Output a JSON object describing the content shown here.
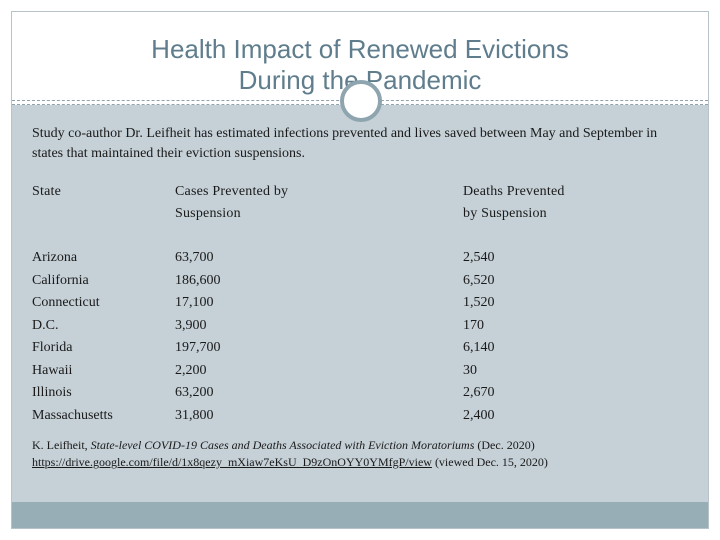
{
  "slide": {
    "title_line1": "Health Impact of Renewed Evictions",
    "title_line2": "During the Pandemic",
    "intro": "Study co-author Dr. Leifheit has estimated infections prevented and lives saved between May and September in states that maintained their eviction suspensions.",
    "table": {
      "headers": {
        "state": "State",
        "cases_line1": "Cases Prevented by",
        "cases_line2": "Suspension",
        "deaths_line1": "Deaths Prevented",
        "deaths_line2": "by Suspension"
      },
      "rows": [
        {
          "state": "Arizona",
          "cases": "63,700",
          "deaths": "2,540"
        },
        {
          "state": "California",
          "cases": "186,600",
          "deaths": "6,520"
        },
        {
          "state": "Connecticut",
          "cases": "17,100",
          "deaths": "1,520"
        },
        {
          "state": "D.C.",
          "cases": "3,900",
          "deaths": "170"
        },
        {
          "state": "Florida",
          "cases": "197,700",
          "deaths": "6,140"
        },
        {
          "state": "Hawaii",
          "cases": "2,200",
          "deaths": "30"
        },
        {
          "state": "Illinois",
          "cases": "63,200",
          "deaths": "2,670"
        },
        {
          "state": "Massachusetts",
          "cases": "31,800",
          "deaths": "2,400"
        }
      ]
    },
    "citation": {
      "author": "K. Leifheit, ",
      "title": "State-level COVID-19 Cases and Deaths Associated with Eviction Moratoriums",
      "date": " (Dec. 2020)",
      "url": "https://drive.google.com/file/d/1x8qezy_mXiaw7eKsU_D9zOnOYY0YMfgP/view",
      "viewed": " (viewed Dec. 15, 2020)"
    }
  }
}
